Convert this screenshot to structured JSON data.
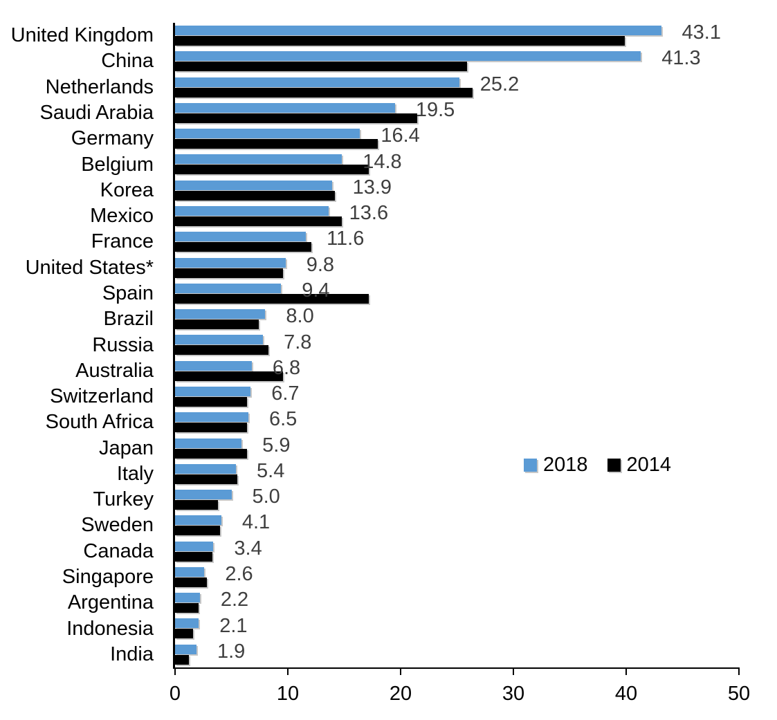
{
  "chart_data": {
    "type": "bar",
    "orientation": "horizontal",
    "categories": [
      "United Kingdom",
      "China",
      "Netherlands",
      "Saudi Arabia",
      "Germany",
      "Belgium",
      "Korea",
      "Mexico",
      "France",
      "United States*",
      "Spain",
      "Brazil",
      "Russia",
      "Australia",
      "Switzerland",
      "South Africa",
      "Japan",
      "Italy",
      "Turkey",
      "Sweden",
      "Canada",
      "Singapore",
      "Argentina",
      "Indonesia",
      "India"
    ],
    "series": [
      {
        "name": "2018",
        "color": "#5B9BD5",
        "values": [
          43.1,
          41.3,
          25.2,
          19.5,
          16.4,
          14.8,
          13.9,
          13.6,
          11.6,
          9.8,
          9.4,
          8.0,
          7.8,
          6.8,
          6.7,
          6.5,
          5.9,
          5.4,
          5.0,
          4.1,
          3.4,
          2.6,
          2.2,
          2.1,
          1.9
        ]
      },
      {
        "name": "2014",
        "color": "#000000",
        "values": [
          39.9,
          25.9,
          26.4,
          21.5,
          18.0,
          17.2,
          14.2,
          14.8,
          12.1,
          9.6,
          17.2,
          7.4,
          8.3,
          9.6,
          6.4,
          6.4,
          6.4,
          5.5,
          3.8,
          4.0,
          3.3,
          2.8,
          2.1,
          1.6,
          1.2
        ]
      }
    ],
    "data_labels": [
      "43.1",
      "41.3",
      "25.2",
      "19.5",
      "16.4",
      "14.8",
      "13.9",
      "13.6",
      "11.6",
      "9.8",
      "9.4",
      "8.0",
      "7.8",
      "6.8",
      "6.7",
      "6.5",
      "5.9",
      "5.4",
      "5.0",
      "4.1",
      "3.4",
      "2.6",
      "2.2",
      "2.1",
      "1.9"
    ],
    "data_label_series": "2018",
    "xlim": [
      0,
      50
    ],
    "x_ticks": [
      "0",
      "10",
      "20",
      "30",
      "40",
      "50"
    ],
    "legend_position": "middle-right",
    "grid": "off",
    "value_label_color": "#3F3F3F",
    "axis_color": "#000000"
  }
}
